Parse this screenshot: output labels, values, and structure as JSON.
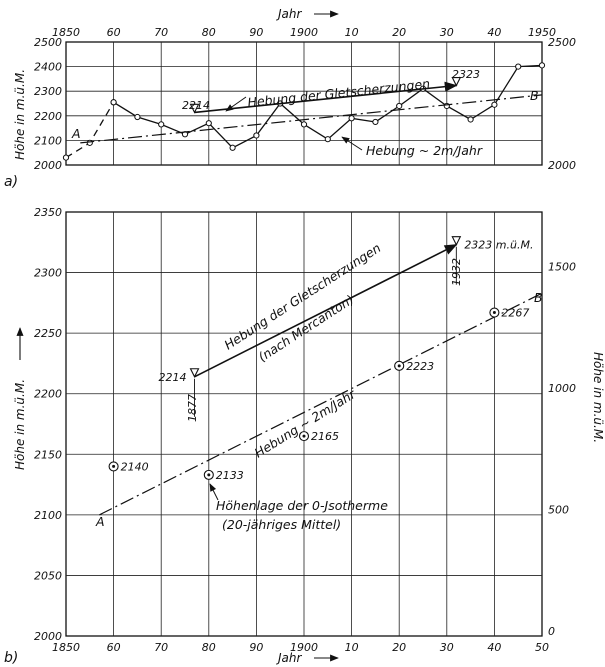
{
  "chart_data": [
    {
      "panel_label": "a)",
      "type": "line",
      "xlabel": "Jahr",
      "ylabel": "Höhe in m.ü.M.",
      "xlim": [
        1850,
        1950
      ],
      "ylim": [
        2000,
        2500
      ],
      "x_ticks": [
        "1850",
        "60",
        "70",
        "80",
        "90",
        "1900",
        "10",
        "20",
        "30",
        "40",
        "1950"
      ],
      "y_ticks_left": [
        "2000",
        "2100",
        "2200",
        "2300",
        "2400",
        "2500"
      ],
      "y_ticks_right": [
        "2000",
        "2500"
      ],
      "series": [
        {
          "style": "dashed",
          "x": [
            1850,
            1855,
            1860
          ],
          "y": [
            2030,
            2090,
            2255
          ]
        },
        {
          "style": "solid",
          "x": [
            1860,
            1865,
            1870,
            1875,
            1880,
            1885,
            1890,
            1895,
            1900,
            1905,
            1910,
            1915,
            1920,
            1925,
            1930,
            1935,
            1940,
            1945,
            1950
          ],
          "y": [
            2255,
            2195,
            2165,
            2125,
            2170,
            2070,
            2120,
            2250,
            2165,
            2105,
            2190,
            2175,
            2240,
            2310,
            2240,
            2185,
            2245,
            2400,
            2405
          ]
        },
        {
          "name": "Hebung der Gletscherzungen",
          "style": "solid-arrow",
          "x": [
            1877,
            1932
          ],
          "y": [
            2214,
            2323
          ],
          "point_labels": [
            "2214",
            "2323"
          ]
        },
        {
          "name": "Hebung ~ 2m/Jahr",
          "style": "dash-dot",
          "x": [
            1853,
            1950
          ],
          "y": [
            2090,
            2285
          ],
          "end_labels": [
            "A",
            "B"
          ]
        }
      ],
      "annotations": [
        "Hebung der Gletscherzungen",
        "Hebung ~ 2m/Jahr",
        "2214",
        "2323",
        "A",
        "B"
      ]
    },
    {
      "panel_label": "b)",
      "type": "scatter",
      "xlabel": "Jahr",
      "ylabel": "Höhe in m.ü.M.",
      "ylabel_right": "Höhe in m.ü.M.",
      "xlim": [
        1850,
        1950
      ],
      "ylim": [
        2000,
        2350
      ],
      "x_ticks": [
        "1850",
        "60",
        "70",
        "80",
        "90",
        "1900",
        "10",
        "20",
        "30",
        "40",
        "50"
      ],
      "y_ticks_left": [
        "2000",
        "2050",
        "2100",
        "2150",
        "2200",
        "2250",
        "2300",
        "2350"
      ],
      "y_ticks_right": [
        "0",
        "500",
        "1000",
        "1500"
      ],
      "points": {
        "name": "Höhenlage der 0-Isotherme (20-jähriges Mittel)",
        "x": [
          1860,
          1880,
          1900,
          1920,
          1940
        ],
        "y": [
          2140,
          2133,
          2165,
          2223,
          2267
        ],
        "labels": [
          "2140",
          "2133",
          "2165",
          "2223",
          "2267"
        ]
      },
      "series": [
        {
          "name": "Hebung der Gletscherzungen (nach Mercanton)",
          "style": "solid-arrow",
          "x": [
            1877,
            1932
          ],
          "y": [
            2214,
            2323
          ],
          "point_labels": [
            "2214",
            "2323 m.ü.M."
          ],
          "year_labels": [
            "1877",
            "1932"
          ]
        },
        {
          "name": "Hebung ~ 2m/Jahr",
          "style": "dash-dot",
          "x": [
            1857,
            1950
          ],
          "y": [
            2100,
            2283
          ],
          "end_labels": [
            "A",
            "B"
          ]
        }
      ],
      "annotations": [
        "Hebung der Gletscherzungen",
        "(nach Mercanton)",
        "Hebung ~ 2m/Jahr",
        "Höhenlage der 0-Jsotherme",
        "(20-jähriges Mittel)",
        "A",
        "B",
        "1877",
        "1932"
      ]
    }
  ]
}
